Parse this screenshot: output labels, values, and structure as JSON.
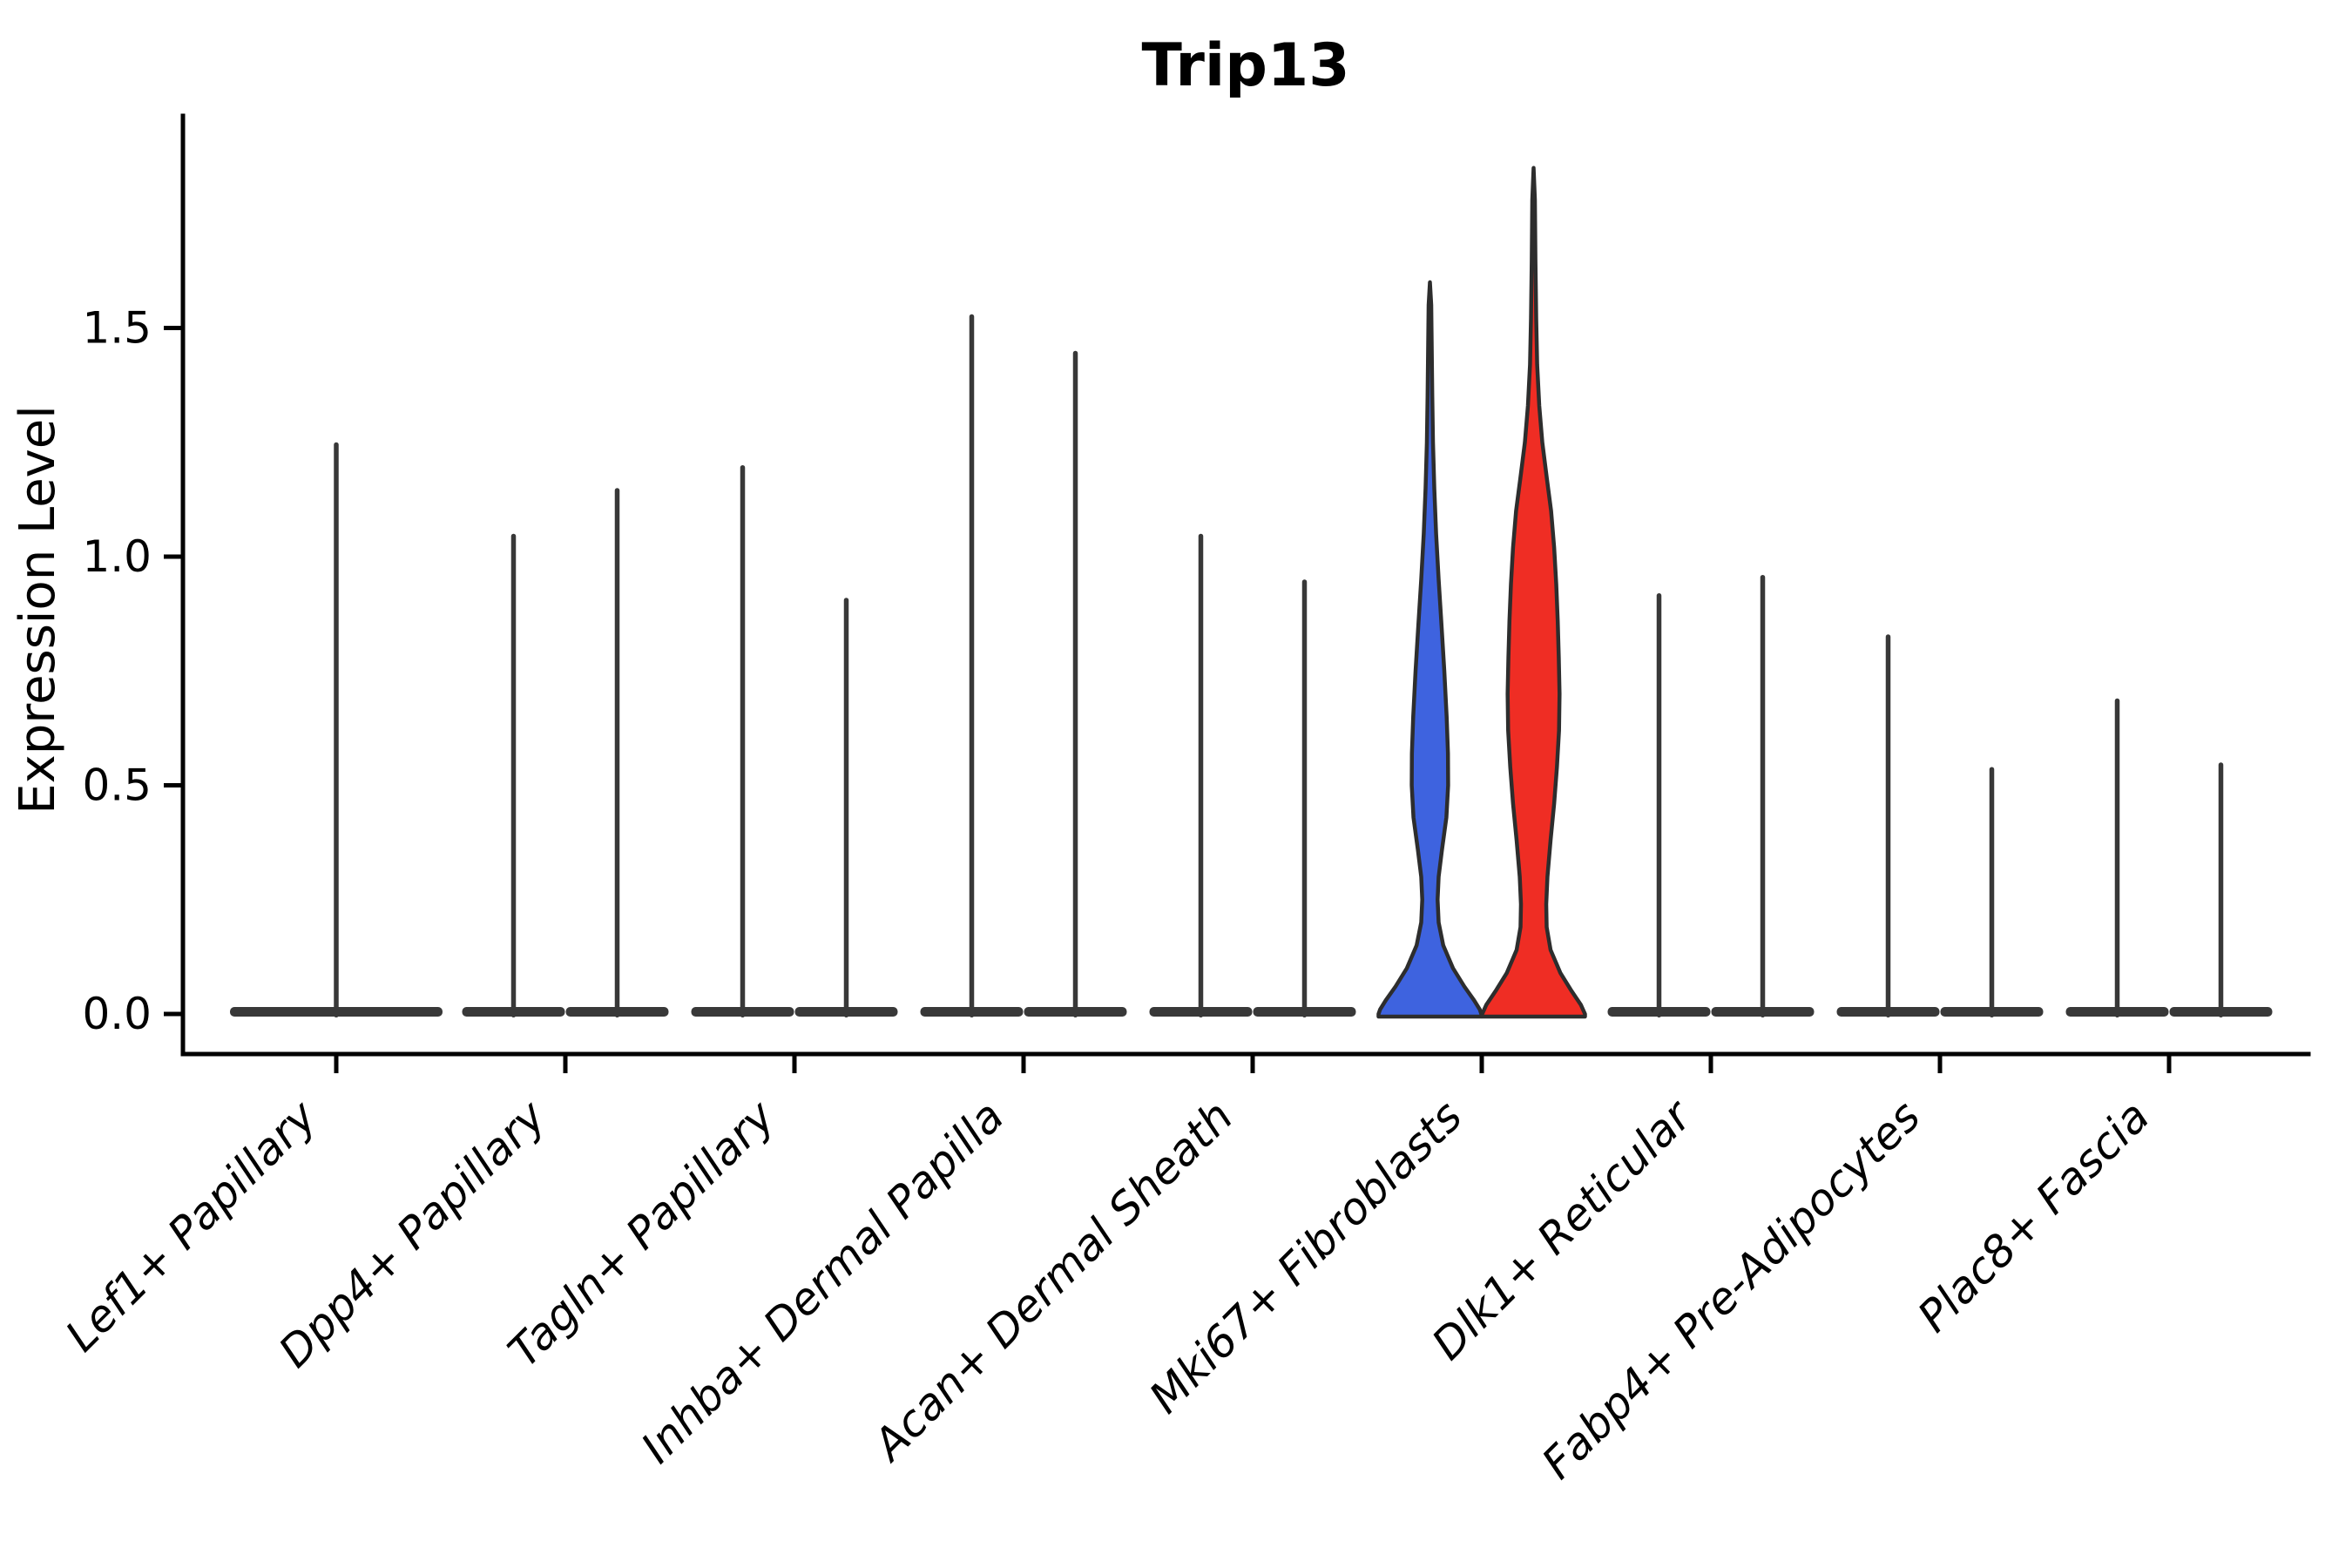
{
  "chart_data": {
    "type": "violin",
    "title": "Trip13",
    "ylabel": "Expression Level",
    "xlabel": "",
    "ylim": [
      -0.09,
      1.97
    ],
    "yticks": [
      "0.0",
      "0.5",
      "1.0",
      "1.5"
    ],
    "grid": false,
    "legend": "none",
    "categories": [
      "Lef1+ Papillary",
      "Dpp4+ Papillary",
      "Tagln+ Papillary",
      "Inhba+ Dermal Papilla",
      "Acan+ Dermal Sheath",
      "Mki67+ Fibroblasts",
      "Dlk1+ Reticular",
      "Fabp4+ Pre-Adipocytes",
      "Plac8+ Fascia"
    ],
    "groups": [
      {
        "category": "Lef1+ Papillary",
        "violins": [
          {
            "position": "center",
            "max": 1.25,
            "shape": "spike"
          }
        ]
      },
      {
        "category": "Dpp4+ Papillary",
        "violins": [
          {
            "position": "left",
            "max": 1.05,
            "shape": "spike"
          },
          {
            "position": "right",
            "max": 1.15,
            "shape": "spike"
          }
        ]
      },
      {
        "category": "Tagln+ Papillary",
        "violins": [
          {
            "position": "left",
            "max": 1.2,
            "shape": "spike"
          },
          {
            "position": "right",
            "max": 0.91,
            "shape": "spike"
          }
        ]
      },
      {
        "category": "Inhba+ Dermal Papilla",
        "violins": [
          {
            "position": "left",
            "max": 1.53,
            "shape": "spike"
          },
          {
            "position": "right",
            "max": 1.45,
            "shape": "spike"
          }
        ]
      },
      {
        "category": "Acan+ Dermal Sheath",
        "violins": [
          {
            "position": "left",
            "max": 1.05,
            "shape": "spike"
          },
          {
            "position": "right",
            "max": 0.95,
            "shape": "spike"
          }
        ]
      },
      {
        "category": "Mki67+ Fibroblasts",
        "violins": [
          {
            "position": "left",
            "max": 1.6,
            "shape": "density",
            "fill": "#3E63DF",
            "profile": [
              [
                1.6,
                0.0
              ],
              [
                1.55,
                0.025
              ],
              [
                1.45,
                0.035
              ],
              [
                1.35,
                0.045
              ],
              [
                1.25,
                0.06
              ],
              [
                1.15,
                0.085
              ],
              [
                1.05,
                0.12
              ],
              [
                0.95,
                0.17
              ],
              [
                0.85,
                0.225
              ],
              [
                0.75,
                0.28
              ],
              [
                0.65,
                0.325
              ],
              [
                0.57,
                0.35
              ],
              [
                0.5,
                0.355
              ],
              [
                0.43,
                0.32
              ],
              [
                0.36,
                0.235
              ],
              [
                0.3,
                0.17
              ],
              [
                0.25,
                0.15
              ],
              [
                0.2,
                0.17
              ],
              [
                0.15,
                0.26
              ],
              [
                0.1,
                0.45
              ],
              [
                0.06,
                0.67
              ],
              [
                0.03,
                0.86
              ],
              [
                0.01,
                0.97
              ],
              [
                0.0,
                1.0
              ]
            ]
          },
          {
            "position": "right",
            "max": 1.85,
            "shape": "density",
            "fill": "#EF2D24",
            "profile": [
              [
                1.85,
                0.0
              ],
              [
                1.78,
                0.025
              ],
              [
                1.65,
                0.035
              ],
              [
                1.52,
                0.05
              ],
              [
                1.42,
                0.07
              ],
              [
                1.33,
                0.11
              ],
              [
                1.25,
                0.17
              ],
              [
                1.17,
                0.26
              ],
              [
                1.1,
                0.34
              ],
              [
                1.02,
                0.4
              ],
              [
                0.94,
                0.44
              ],
              [
                0.86,
                0.47
              ],
              [
                0.78,
                0.49
              ],
              [
                0.7,
                0.505
              ],
              [
                0.62,
                0.495
              ],
              [
                0.54,
                0.455
              ],
              [
                0.46,
                0.4
              ],
              [
                0.38,
                0.33
              ],
              [
                0.3,
                0.27
              ],
              [
                0.24,
                0.245
              ],
              [
                0.19,
                0.255
              ],
              [
                0.14,
                0.33
              ],
              [
                0.09,
                0.52
              ],
              [
                0.05,
                0.74
              ],
              [
                0.02,
                0.92
              ],
              [
                0.0,
                1.0
              ]
            ]
          }
        ]
      },
      {
        "category": "Dlk1+ Reticular",
        "violins": [
          {
            "position": "left",
            "max": 0.92,
            "shape": "spike"
          },
          {
            "position": "right",
            "max": 0.96,
            "shape": "spike"
          }
        ]
      },
      {
        "category": "Fabp4+ Pre-Adipocytes",
        "violins": [
          {
            "position": "left",
            "max": 0.83,
            "shape": "spike"
          },
          {
            "position": "right",
            "max": 0.54,
            "shape": "spike"
          }
        ]
      },
      {
        "category": "Plac8+ Fascia",
        "violins": [
          {
            "position": "left",
            "max": 0.69,
            "shape": "spike"
          },
          {
            "position": "right",
            "max": 0.55,
            "shape": "spike"
          }
        ]
      }
    ],
    "colors": {
      "split_left_fill": "#3E63DF",
      "split_right_fill": "#EF2D24",
      "violin_outline": "#2d2d2d",
      "spike_color": "#383838",
      "axis_color": "#000000",
      "background": "#ffffff"
    }
  }
}
